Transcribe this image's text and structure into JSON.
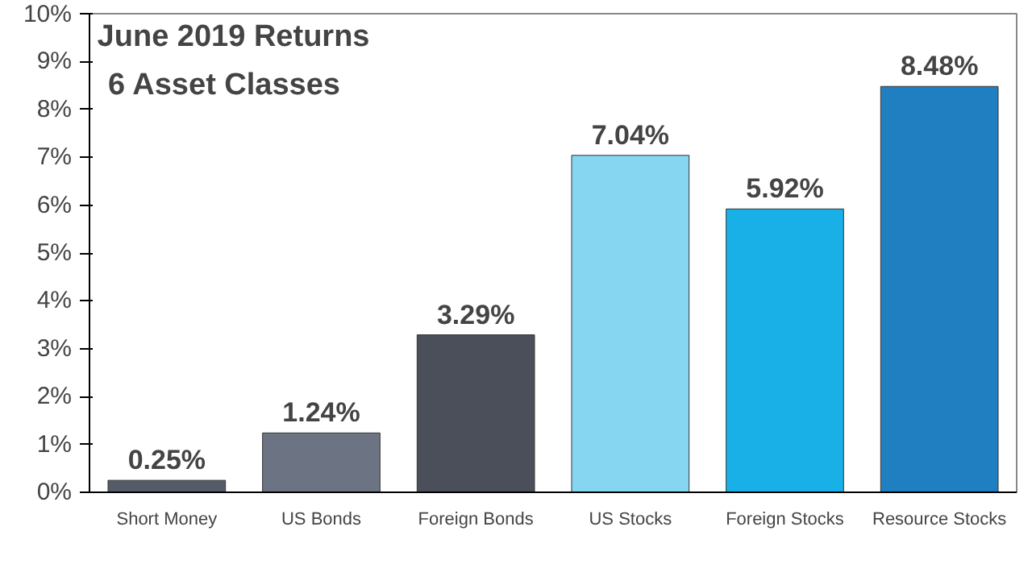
{
  "chart_data": {
    "type": "bar",
    "title": "June 2019 Returns",
    "subtitle": "6 Asset Classes",
    "categories": [
      "Short Money",
      "US Bonds",
      "Foreign Bonds",
      "US Stocks",
      "Foreign Stocks",
      "Resource Stocks"
    ],
    "values": [
      0.25,
      1.24,
      3.29,
      7.04,
      5.92,
      8.48
    ],
    "colors": [
      "#555c68",
      "#6c7484",
      "#4b4f59",
      "#86d6f2",
      "#19b0e8",
      "#1f7fc0"
    ],
    "value_labels": [
      "0.25%",
      "1.24%",
      "3.29%",
      "7.04%",
      "5.92%",
      "8.48%"
    ],
    "ylim": [
      0,
      10
    ],
    "yticks": [
      {
        "value": 0,
        "label": "0%"
      },
      {
        "value": 1,
        "label": "1%"
      },
      {
        "value": 2,
        "label": "2%"
      },
      {
        "value": 3,
        "label": "3%"
      },
      {
        "value": 4,
        "label": "4%"
      },
      {
        "value": 5,
        "label": "5%"
      },
      {
        "value": 6,
        "label": "6%"
      },
      {
        "value": 7,
        "label": "7%"
      },
      {
        "value": 8,
        "label": "8%"
      },
      {
        "value": 9,
        "label": "9%"
      },
      {
        "value": 10,
        "label": "10%"
      }
    ],
    "grid": false
  }
}
